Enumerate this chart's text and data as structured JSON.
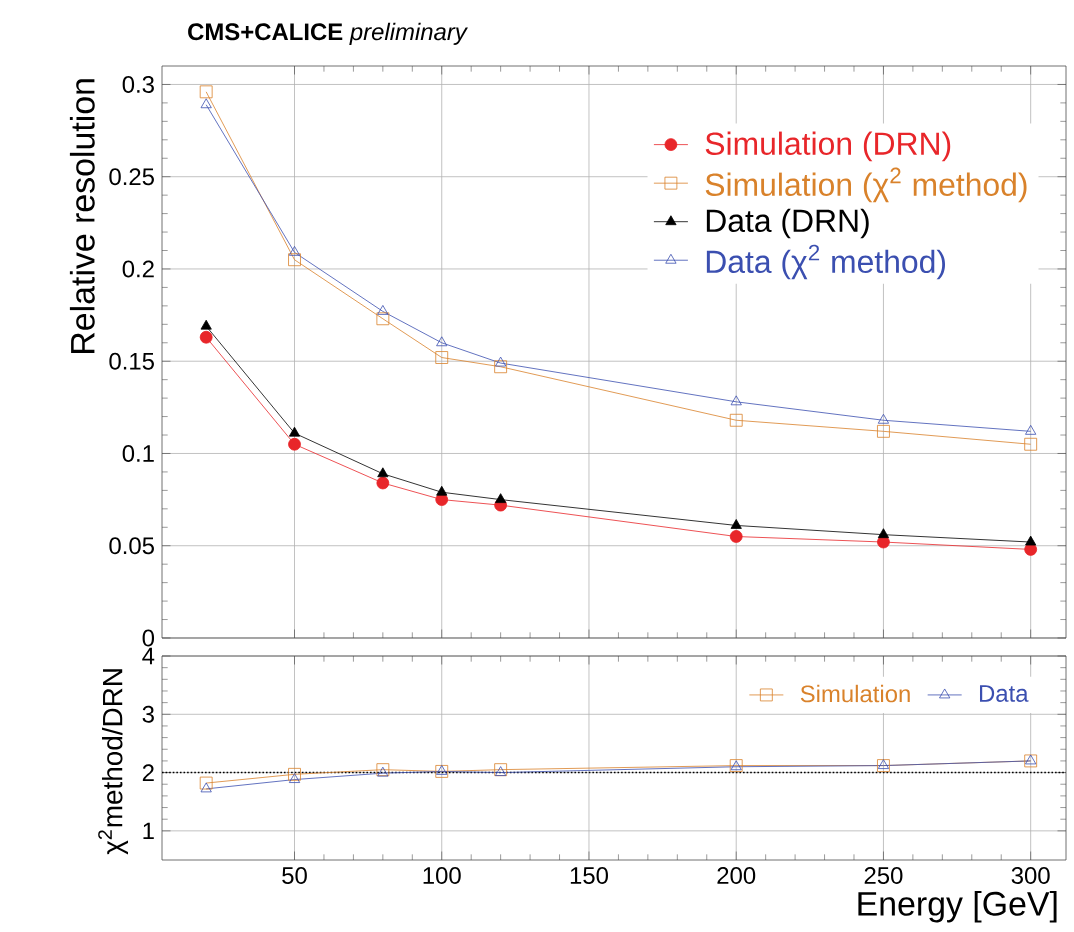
{
  "chart_data": [
    {
      "type": "line",
      "title": "**CMS+CALICE** *preliminary*",
      "ylabel": "Relative resolution",
      "x": [
        20,
        50,
        80,
        100,
        120,
        200,
        250,
        300
      ],
      "xlim": [
        5,
        312
      ],
      "xticks": [
        50,
        100,
        150,
        200,
        250,
        300
      ],
      "ylim": [
        0,
        0.31
      ],
      "yticks": [
        0,
        0.05,
        0.1,
        0.15,
        0.2,
        0.25,
        0.3
      ],
      "tick_labels": "y",
      "grid": true,
      "legend": "top right",
      "series": [
        {
          "name": "Simulation (DRN)",
          "color": "#e8262a",
          "marker": "circle",
          "values": [
            0.163,
            0.105,
            0.084,
            0.075,
            0.072,
            0.055,
            0.052,
            0.048
          ]
        },
        {
          "name": "Simulation (χ$^{2}$ method)",
          "color": "#d9822b",
          "marker": "square",
          "values": [
            0.296,
            0.205,
            0.173,
            0.152,
            0.147,
            0.118,
            0.112,
            0.105
          ]
        },
        {
          "name": "Data (DRN)",
          "color": "#000000",
          "marker": "triangle",
          "values": [
            0.169,
            0.111,
            0.089,
            0.079,
            0.075,
            0.061,
            0.056,
            0.052
          ]
        },
        {
          "name": "Data (χ$^{2}$ method)",
          "color": "#3b4fb0",
          "marker": "triangle-down",
          "values": [
            0.289,
            0.209,
            0.177,
            0.16,
            0.149,
            0.128,
            0.118,
            0.112
          ]
        }
      ]
    },
    {
      "type": "line",
      "xlabel": "Energy [GeV]",
      "ylabel": "χ$^{2}$method/DRN",
      "x": [
        20,
        50,
        80,
        100,
        120,
        200,
        250,
        300
      ],
      "xlim": [
        5,
        312
      ],
      "xticks": [
        50,
        100,
        150,
        200,
        250,
        300
      ],
      "ylim": [
        0.5,
        4
      ],
      "yticks": [
        1,
        2,
        3,
        4
      ],
      "grid": true,
      "legend": "top right",
      "ref_lines": [
        {
          "axis": "y",
          "value": 2,
          "line_style": "dotted",
          "color": "#000000"
        }
      ],
      "series": [
        {
          "name": "Simulation",
          "color": "#d9822b",
          "marker": "square",
          "values": [
            1.82,
            1.97,
            2.05,
            2.02,
            2.05,
            2.12,
            2.12,
            2.2
          ]
        },
        {
          "name": "Data",
          "color": "#3b4fb0",
          "marker": "triangle-down",
          "values": [
            1.72,
            1.88,
            1.99,
            2.02,
            2.0,
            2.1,
            2.12,
            2.2
          ]
        }
      ]
    }
  ]
}
